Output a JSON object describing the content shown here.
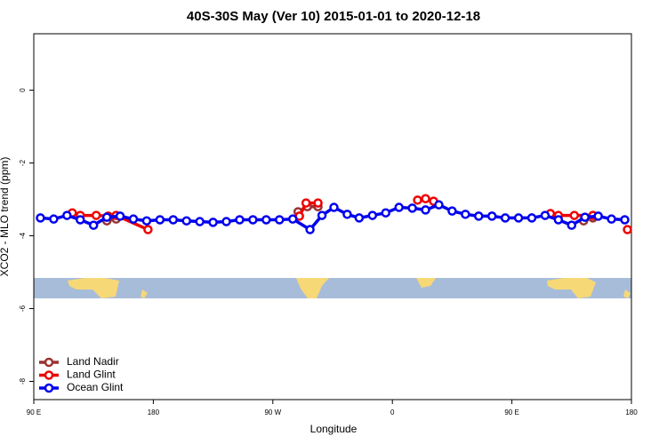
{
  "chart_data": {
    "type": "line",
    "title": "40S-30S May (Ver 10)   2015-01-01 to 2020-12-18",
    "xlabel": "Longitude",
    "ylabel": "XCO2 - MLO trend (ppm)",
    "xlim": [
      90,
      540
    ],
    "ylim": [
      -8.5,
      1.55
    ],
    "xticks": [
      {
        "value": 90,
        "label": "90 E"
      },
      {
        "value": 180,
        "label": "180"
      },
      {
        "value": 270,
        "label": "90 W"
      },
      {
        "value": 360,
        "label": "0"
      },
      {
        "value": 450,
        "label": "90 E"
      },
      {
        "value": 540,
        "label": "180"
      }
    ],
    "yticks": [
      0,
      -2,
      -4,
      -6,
      -8
    ],
    "legend": "bottom-left",
    "series": [
      {
        "name": "Land Nadir",
        "color": "#993333",
        "x": [
          145,
          152,
          null,
          289,
          296,
          304,
          null,
          504,
          511
        ],
        "values": [
          -3.59,
          -3.54,
          null,
          -3.34,
          -3.2,
          -3.2,
          null,
          -3.59,
          -3.51
        ]
      },
      {
        "name": "Land Glint",
        "color": "#ee0000",
        "x": [
          119,
          125,
          137,
          146,
          152,
          176,
          null,
          290,
          295,
          304,
          null,
          379,
          385,
          391,
          null,
          479,
          485,
          497,
          511,
          null,
          537
        ],
        "values": [
          -3.37,
          -3.44,
          -3.44,
          -3.46,
          -3.44,
          -3.83,
          null,
          -3.46,
          -3.1,
          -3.1,
          null,
          -3.02,
          -2.98,
          -3.05,
          null,
          -3.39,
          -3.44,
          -3.44,
          -3.44,
          null,
          -3.83
        ]
      },
      {
        "name": "Ocean Glint",
        "color": "#0000ee",
        "x": [
          95,
          105,
          115,
          125,
          135,
          145,
          155,
          165,
          175,
          185,
          195,
          205,
          215,
          225,
          235,
          245,
          255,
          265,
          275,
          285,
          298,
          307,
          316,
          326,
          335,
          345,
          355,
          365,
          375,
          385,
          395,
          405,
          415,
          425,
          435,
          445,
          455,
          465,
          475,
          485,
          495,
          505,
          515,
          525,
          535
        ],
        "values": [
          -3.51,
          -3.54,
          -3.44,
          -3.56,
          -3.71,
          -3.49,
          -3.46,
          -3.54,
          -3.59,
          -3.56,
          -3.56,
          -3.59,
          -3.61,
          -3.63,
          -3.61,
          -3.56,
          -3.56,
          -3.56,
          -3.56,
          -3.54,
          -3.83,
          -3.44,
          -3.22,
          -3.41,
          -3.51,
          -3.44,
          -3.37,
          -3.22,
          -3.24,
          -3.29,
          -3.15,
          -3.32,
          -3.41,
          -3.46,
          -3.46,
          -3.51,
          -3.51,
          -3.51,
          -3.44,
          -3.56,
          -3.71,
          -3.49,
          -3.46,
          -3.54,
          -3.56
        ]
      }
    ]
  }
}
